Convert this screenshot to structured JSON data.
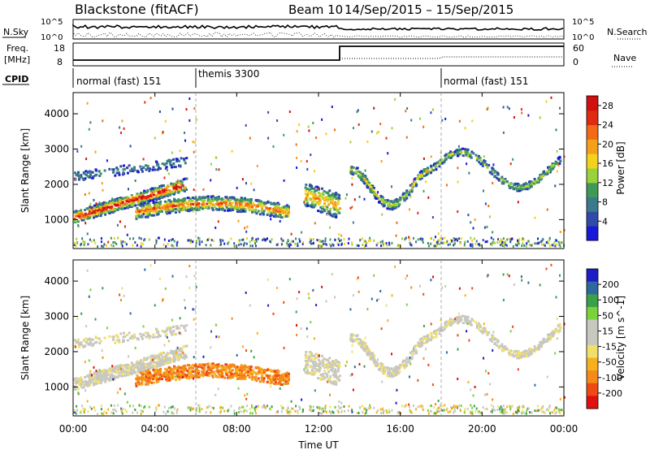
{
  "header": {
    "station": "Blackstone (fitACF)",
    "beam": "Beam 10",
    "date_range": "14/Sep/2015 – 15/Sep/2015"
  },
  "strip_labels": {
    "nsky": "N.Sky",
    "nsky_lo": "10^0",
    "nsky_hi": "10^5",
    "nsearch": "N.Search",
    "freq": "Freq.",
    "freq_unit": "[MHz]",
    "freq_hi": "18",
    "freq_lo": "8",
    "nave": "Nave",
    "nave_hi": "60",
    "nave_lo": "0",
    "cpid": "CPID"
  },
  "cpid_segments": [
    {
      "label": "normal (fast) 151",
      "start_hour": 0
    },
    {
      "label": "themis 3300",
      "start_hour": 6
    },
    {
      "label": "normal (fast) 151",
      "start_hour": 18
    }
  ],
  "colors": {
    "power_scale": [
      "#1a18d8",
      "#2f4aa8",
      "#3a7a8a",
      "#3f9a5a",
      "#9ad23a",
      "#f2d21c",
      "#f5a01a",
      "#f26a16",
      "#e02a12",
      "#d20f0f"
    ],
    "velocity_scale": [
      "#e01010",
      "#f04a14",
      "#f58a18",
      "#f6b01e",
      "#f0e06a",
      "#c8c8c0",
      "#c8c8c0",
      "#7ad23c",
      "#3aa04a",
      "#2e68a0",
      "#1e1ec8"
    ]
  },
  "chart_data": [
    {
      "type": "heatmap",
      "panel": "power",
      "x_label": "Time UT",
      "y_label": "Slant Range [km]",
      "x_ticks": [
        "00:00",
        "04:00",
        "08:00",
        "12:00",
        "16:00",
        "20:00",
        "00:00"
      ],
      "x_range_hours": [
        0,
        24
      ],
      "y_range_km": [
        180,
        4600
      ],
      "y_ticks": [
        1000,
        2000,
        3000,
        4000
      ],
      "colorbar_label": "Power [dB]",
      "colorbar_ticks": [
        4,
        8,
        12,
        16,
        20,
        24,
        28
      ],
      "colorbar_range": [
        0,
        30
      ]
    },
    {
      "type": "heatmap",
      "panel": "velocity",
      "x_label": "Time UT",
      "y_label": "Slant Range [km]",
      "x_ticks": [
        "00:00",
        "04:00",
        "08:00",
        "12:00",
        "16:00",
        "20:00",
        "00:00"
      ],
      "x_range_hours": [
        0,
        24
      ],
      "y_range_km": [
        180,
        4600
      ],
      "y_ticks": [
        1000,
        2000,
        3000,
        4000
      ],
      "colorbar_label": "Velocity [m s^-1]",
      "colorbar_ticks": [
        200,
        100,
        50,
        15,
        -15,
        -50,
        -100,
        -200
      ]
    }
  ],
  "footer": {
    "x_axis_title": "Time UT"
  }
}
